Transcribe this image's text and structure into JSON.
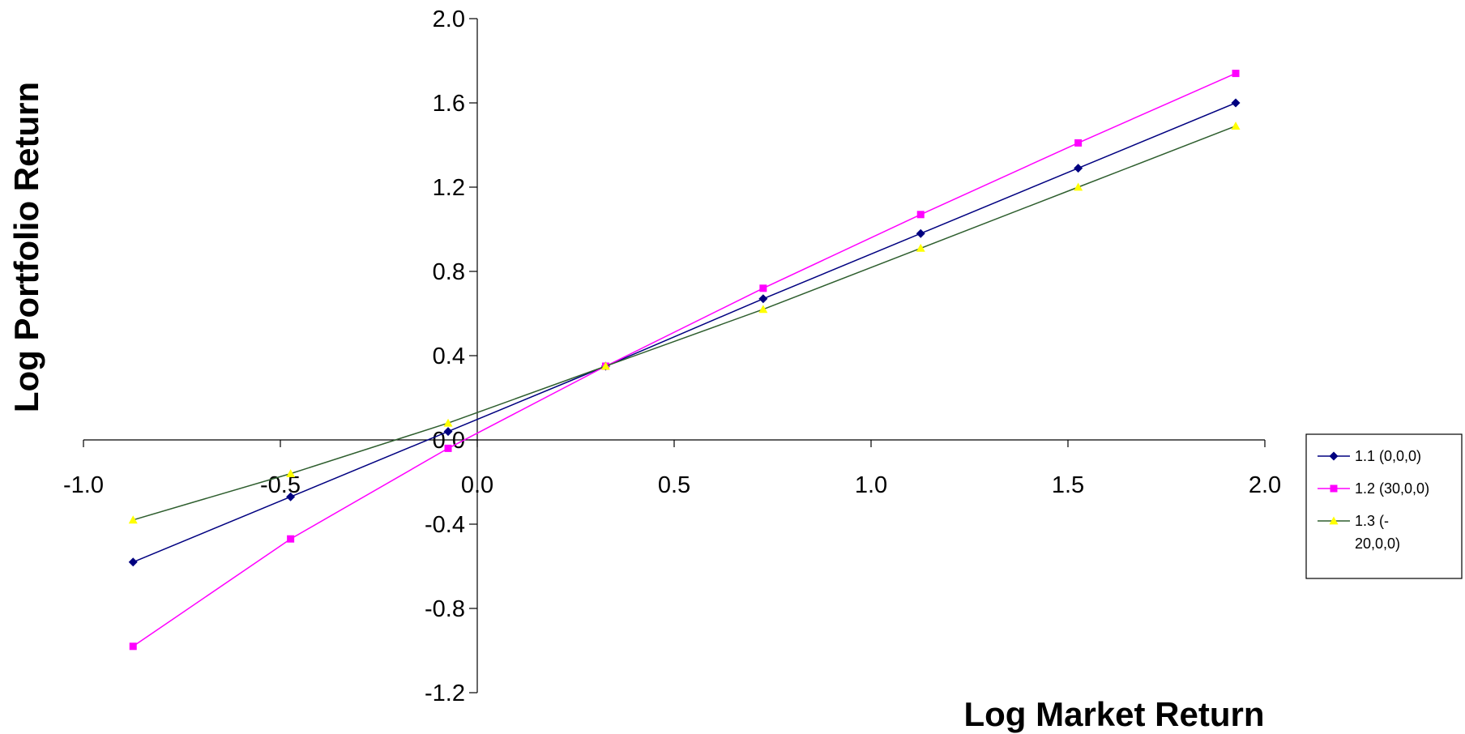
{
  "chart_data": {
    "type": "line",
    "xlabel": "Log Market Return",
    "ylabel": "Log Portfolio Return",
    "xlim": [
      -1.0,
      2.0
    ],
    "ylim": [
      -1.2,
      2.0
    ],
    "x_ticks": [
      -1.0,
      -0.5,
      0.0,
      0.5,
      1.0,
      1.5,
      2.0
    ],
    "y_ticks": [
      -1.2,
      -0.8,
      -0.4,
      0.0,
      0.4,
      0.8,
      1.2,
      1.6,
      2.0
    ],
    "x_tick_labels": [
      "-1.0",
      "-0.5",
      "0.0",
      "0.5",
      "1.0",
      "1.5",
      "2.0"
    ],
    "y_tick_labels": [
      "-1.2",
      "-0.8",
      "-0.4",
      "0.0",
      "0.4",
      "0.8",
      "1.2",
      "1.6",
      "2.0"
    ],
    "grid": false,
    "legend_position": "right",
    "series": [
      {
        "name": "1.1 (0,0,0)",
        "color": "#000080",
        "line_color": "#000080",
        "marker": "diamond",
        "x": [
          -0.874,
          -0.474,
          -0.074,
          0.326,
          0.726,
          1.126,
          1.526,
          1.926
        ],
        "y": [
          -0.58,
          -0.27,
          0.04,
          0.35,
          0.67,
          0.98,
          1.29,
          1.6
        ]
      },
      {
        "name": "1.2 (30,0,0)",
        "color": "#FF00FF",
        "line_color": "#FF00FF",
        "marker": "square",
        "x": [
          -0.874,
          -0.474,
          -0.074,
          0.326,
          0.726,
          1.126,
          1.526,
          1.926
        ],
        "y": [
          -0.98,
          -0.47,
          -0.04,
          0.35,
          0.72,
          1.07,
          1.41,
          1.74
        ]
      },
      {
        "name": "1.3 (-20,0,0)",
        "color": "#FFFF00",
        "line_color": "#2E5E2E",
        "marker": "triangle",
        "x": [
          -0.874,
          -0.474,
          -0.074,
          0.326,
          0.726,
          1.126,
          1.526,
          1.926
        ],
        "y": [
          -0.38,
          -0.16,
          0.08,
          0.35,
          0.62,
          0.91,
          1.2,
          1.49
        ]
      }
    ]
  }
}
